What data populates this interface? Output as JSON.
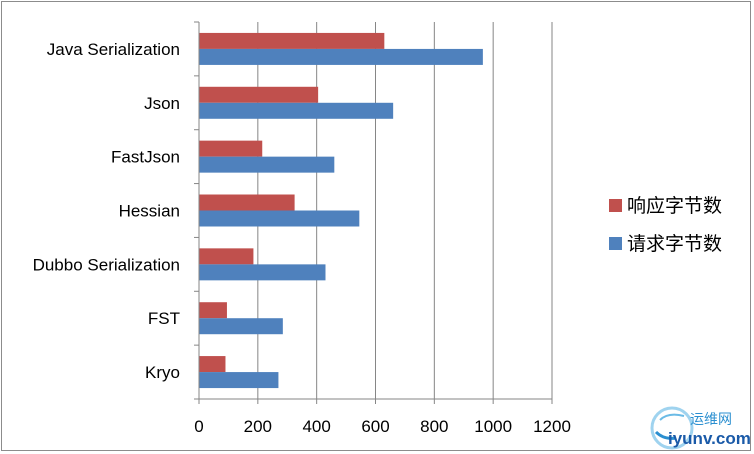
{
  "chart_data": {
    "type": "bar",
    "orientation": "horizontal",
    "categories": [
      "Java Serialization",
      "Json",
      "FastJson",
      "Hessian",
      "Dubbo Serialization",
      "FST",
      "Kryo"
    ],
    "series": [
      {
        "name": "响应字节数",
        "color": "#c0504d",
        "values": [
          630,
          405,
          215,
          325,
          185,
          95,
          90
        ]
      },
      {
        "name": "请求字节数",
        "color": "#4f81bd",
        "values": [
          965,
          660,
          460,
          545,
          430,
          285,
          270
        ]
      }
    ],
    "xlim": [
      0,
      1200
    ],
    "xticks": [
      0,
      200,
      400,
      600,
      800,
      1000,
      1200
    ],
    "grid": true,
    "legend_position": "right"
  },
  "watermark": {
    "text_cn": "运维网",
    "text_en": "iyunv.com"
  }
}
